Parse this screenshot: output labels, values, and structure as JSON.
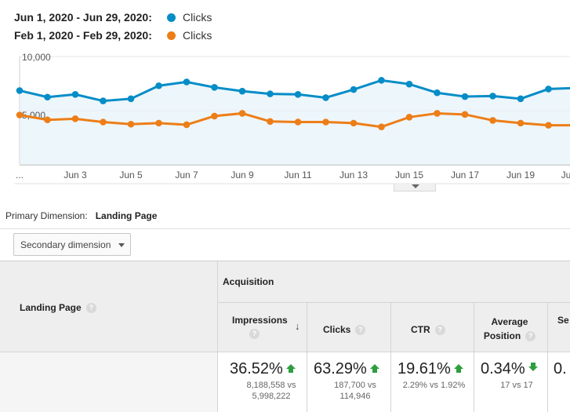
{
  "legend": [
    {
      "range": "Jun 1, 2020 - Jun 29, 2020:",
      "metric": "Clicks",
      "color": "#058dc7"
    },
    {
      "range": "Feb 1, 2020 - Feb 29, 2020:",
      "metric": "Clicks",
      "color": "#ed7e17"
    }
  ],
  "chart_data": {
    "type": "line",
    "y_ticks": [
      "10,000",
      "5,000"
    ],
    "ylim": [
      0,
      10000
    ],
    "x_tick_labels": [
      "...",
      "Jun 3",
      "Jun 5",
      "Jun 7",
      "Jun 9",
      "Jun 11",
      "Jun 13",
      "Jun 15",
      "Jun 17",
      "Jun 19",
      "Ju"
    ],
    "series": [
      {
        "color": "#058dc7",
        "values": [
          6850,
          6250,
          6500,
          5900,
          6100,
          7300,
          7650,
          7150,
          6800,
          6550,
          6500,
          6200,
          6950,
          7800,
          7450,
          6650,
          6300,
          6350,
          6100,
          7000,
          7100
        ]
      },
      {
        "color": "#ed7e17",
        "values": [
          4600,
          4150,
          4250,
          3950,
          3750,
          3850,
          3700,
          4500,
          4750,
          4000,
          3950,
          3950,
          3850,
          3500,
          4400,
          4750,
          4650,
          4100,
          3850,
          3650,
          3650
        ]
      }
    ]
  },
  "primary_dimension": {
    "label": "Primary Dimension:",
    "value": "Landing Page"
  },
  "secondary_dimension_label": "Secondary dimension",
  "table": {
    "group_header": "Acquisition",
    "first_column": "Landing Page",
    "columns": [
      {
        "label": "Impressions",
        "percent": "36.52%",
        "trend": "up",
        "detail_line1": "8,188,558 vs",
        "detail_line2": "5,998,222"
      },
      {
        "label": "Clicks",
        "percent": "63.29%",
        "trend": "up",
        "detail_line1": "187,700 vs",
        "detail_line2": "114,946"
      },
      {
        "label": "CTR",
        "percent": "19.61%",
        "trend": "up",
        "detail_line1": "2.29% vs 1.92%",
        "detail_line2": ""
      },
      {
        "label": "Average",
        "label2": "Position",
        "percent": "0.34%",
        "trend": "down",
        "detail_line1": "17 vs 17",
        "detail_line2": ""
      },
      {
        "label": "Se",
        "percent": "0.",
        "trend": "",
        "detail_line1": "",
        "detail_line2": ""
      }
    ]
  }
}
